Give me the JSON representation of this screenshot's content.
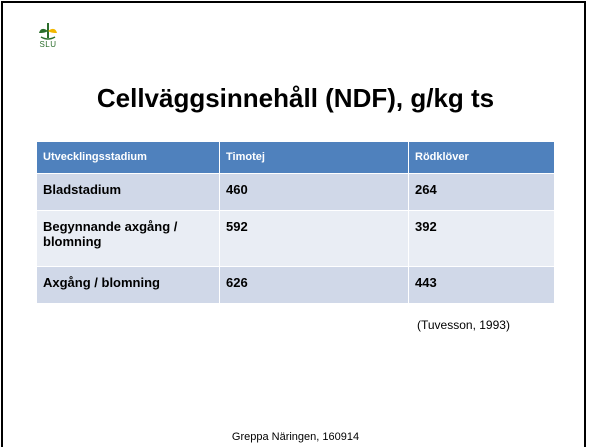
{
  "logo_text": "SLU",
  "title": "Cellväggsinnehåll (NDF), g/kg ts",
  "table": {
    "header": [
      "Utvecklingsstadium",
      "Timotej",
      "Rödklöver"
    ],
    "rows": [
      [
        "Bladstadium",
        460,
        264
      ],
      [
        "Begynnande axgång / blomning",
        592,
        392
      ],
      [
        "Axgång / blomning",
        626,
        443
      ]
    ]
  },
  "citation": "(Tuvesson, 1993)",
  "footer": "Greppa Näringen, 160914"
}
